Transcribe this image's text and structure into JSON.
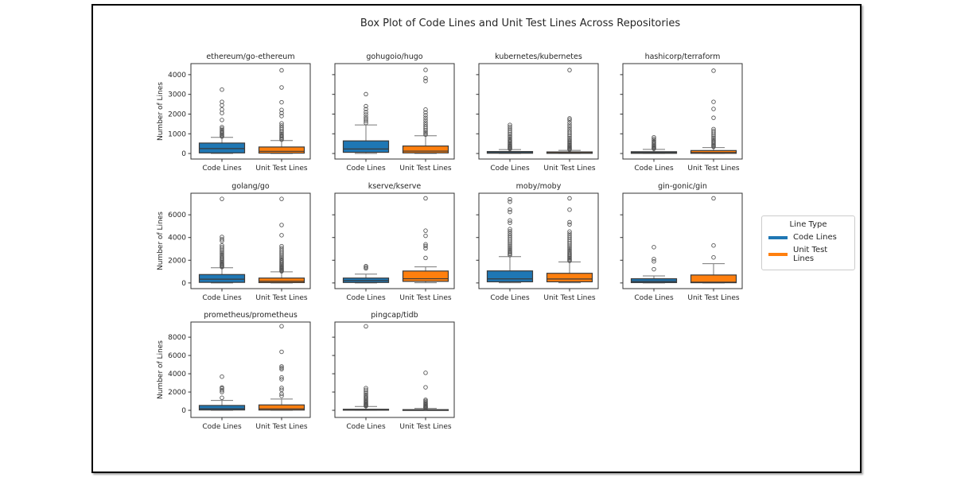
{
  "figure": {
    "title": "Box Plot of Code Lines and Unit Test Lines Across Repositories"
  },
  "legend": {
    "title": "Line Type",
    "entries": [
      {
        "label": "Code Lines",
        "color": "#1f77b4"
      },
      {
        "label": "Unit Test Lines",
        "color": "#ff7f0e"
      }
    ]
  },
  "chart_data": {
    "type": "boxplot-grid",
    "title": "Box Plot of Code Lines and Unit Test Lines Across Repositories",
    "ylabel": "Number of Lines",
    "xlabel": "",
    "grid": false,
    "legend_position": "right-outside",
    "categories": [
      "Code Lines",
      "Unit Test Lines"
    ],
    "series_colors": {
      "Code Lines": "#1f77b4",
      "Unit Test Lines": "#ff7f0e"
    },
    "box_edge_color": "#3a3a3a",
    "whisker_color": "#777777",
    "outlier_color": "#555555",
    "rows": [
      {
        "ylim": [
          -280,
          4560
        ],
        "yticks": [
          0,
          1000,
          2000,
          3000,
          4000
        ]
      },
      {
        "ylim": [
          -500,
          7900
        ],
        "yticks": [
          0,
          2000,
          4000,
          6000
        ]
      },
      {
        "ylim": [
          -780,
          9660
        ],
        "yticks": [
          0,
          2000,
          4000,
          6000,
          8000
        ]
      }
    ],
    "subplots": [
      {
        "title": "ethereum/go-ethereum",
        "row": 0,
        "col": 0,
        "boxes": [
          {
            "label": "Code Lines",
            "whislo": 0,
            "q1": 30,
            "med": 250,
            "q3": 530,
            "whishi": 820,
            "outliers": [
              860,
              900,
              950,
              1000,
              1060,
              1120,
              1190,
              1260,
              1340,
              1700,
              2050,
              2230,
              2450,
              2620,
              3240
            ]
          },
          {
            "label": "Unit Test Lines",
            "whislo": 0,
            "q1": 20,
            "med": 110,
            "q3": 330,
            "whishi": 660,
            "outliers": [
              700,
              750,
              800,
              860,
              920,
              990,
              1060,
              1140,
              1230,
              1320,
              1420,
              1530,
              1900,
              2050,
              2210,
              2600,
              3350,
              4220
            ]
          }
        ]
      },
      {
        "title": "gohugoio/hugo",
        "row": 0,
        "col": 1,
        "boxes": [
          {
            "label": "Code Lines",
            "whislo": 0,
            "q1": 60,
            "med": 230,
            "q3": 640,
            "whishi": 1450,
            "outliers": [
              1550,
              1650,
              1750,
              1850,
              1980,
              2100,
              2250,
              2400,
              3010
            ]
          },
          {
            "label": "Unit Test Lines",
            "whislo": 0,
            "q1": 30,
            "med": 120,
            "q3": 380,
            "whishi": 900,
            "outliers": [
              960,
              1030,
              1100,
              1180,
              1270,
              1360,
              1460,
              1570,
              1690,
              1810,
              1940,
              2080,
              2230,
              3680,
              3820,
              4240
            ]
          }
        ]
      },
      {
        "title": "kubernetes/kubernetes",
        "row": 0,
        "col": 2,
        "boxes": [
          {
            "label": "Code Lines",
            "whislo": 0,
            "q1": 15,
            "med": 45,
            "q3": 100,
            "whishi": 200,
            "outliers": [
              230,
              260,
              290,
              330,
              370,
              410,
              460,
              510,
              560,
              620,
              680,
              750,
              830,
              900,
              980,
              1060,
              1150,
              1250,
              1350,
              1450
            ]
          },
          {
            "label": "Unit Test Lines",
            "whislo": 0,
            "q1": 10,
            "med": 35,
            "q3": 80,
            "whishi": 160,
            "outliers": [
              200,
              230,
              260,
              300,
              340,
              380,
              430,
              480,
              530,
              590,
              650,
              720,
              790,
              870,
              950,
              1040,
              1130,
              1230,
              1340,
              1450,
              1570,
              1700,
              1780,
              4230
            ]
          }
        ]
      },
      {
        "title": "hashicorp/terraform",
        "row": 0,
        "col": 3,
        "boxes": [
          {
            "label": "Code Lines",
            "whislo": 0,
            "q1": 10,
            "med": 40,
            "q3": 90,
            "whishi": 210,
            "outliers": [
              240,
              270,
              300,
              340,
              380,
              430,
              480,
              540,
              600,
              670,
              740,
              820
            ]
          },
          {
            "label": "Unit Test Lines",
            "whislo": 0,
            "q1": 10,
            "med": 50,
            "q3": 150,
            "whishi": 300,
            "outliers": [
              340,
              380,
              430,
              480,
              540,
              600,
              660,
              730,
              800,
              880,
              960,
              1050,
              1140,
              1240,
              1810,
              2260,
              2620,
              4200
            ]
          }
        ]
      },
      {
        "title": "golang/go",
        "row": 1,
        "col": 0,
        "boxes": [
          {
            "label": "Code Lines",
            "whislo": 0,
            "q1": 50,
            "med": 330,
            "q3": 740,
            "whishi": 1340,
            "outliers": [
              1400,
              1460,
              1530,
              1600,
              1680,
              1760,
              1850,
              1940,
              2040,
              2140,
              2250,
              2360,
              2480,
              2600,
              2730,
              2870,
              3010,
              3160,
              3310,
              3700,
              3850,
              4050,
              7400
            ]
          },
          {
            "label": "Unit Test Lines",
            "whislo": 0,
            "q1": 30,
            "med": 150,
            "q3": 430,
            "whishi": 980,
            "outliers": [
              1030,
              1090,
              1150,
              1220,
              1290,
              1370,
              1450,
              1540,
              1630,
              1730,
              1830,
              1940,
              2050,
              2170,
              2300,
              2440,
              2580,
              2730,
              2890,
              3060,
              3240,
              4200,
              5100,
              7400
            ]
          }
        ]
      },
      {
        "title": "kserve/kserve",
        "row": 1,
        "col": 1,
        "boxes": [
          {
            "label": "Code Lines",
            "whislo": 0,
            "q1": 40,
            "med": 210,
            "q3": 430,
            "whishi": 780,
            "outliers": [
              1280,
              1380,
              1480
            ]
          },
          {
            "label": "Unit Test Lines",
            "whislo": 20,
            "q1": 140,
            "med": 370,
            "q3": 1050,
            "whishi": 1420,
            "outliers": [
              2200,
              3050,
              3250,
              3400,
              4150,
              4600,
              7450
            ]
          }
        ]
      },
      {
        "title": "moby/moby",
        "row": 1,
        "col": 2,
        "boxes": [
          {
            "label": "Code Lines",
            "whislo": 20,
            "q1": 100,
            "med": 360,
            "q3": 1060,
            "whishi": 2320,
            "outliers": [
              2450,
              2550,
              2660,
              2770,
              2890,
              3010,
              3140,
              3270,
              3410,
              3550,
              3700,
              3860,
              4020,
              4190,
              4370,
              4550,
              4740,
              5300,
              5500,
              6250,
              6450,
              7150,
              7370
            ]
          },
          {
            "label": "Unit Test Lines",
            "whislo": 20,
            "q1": 100,
            "med": 350,
            "q3": 850,
            "whishi": 1850,
            "outliers": [
              1950,
              2030,
              2110,
              2200,
              2290,
              2390,
              2490,
              2600,
              2710,
              2830,
              2950,
              3080,
              3210,
              3350,
              3500,
              3650,
              3810,
              3980,
              4150,
              4330,
              4520,
              5150,
              5350,
              6450,
              7450
            ]
          }
        ]
      },
      {
        "title": "gin-gonic/gin",
        "row": 1,
        "col": 3,
        "boxes": [
          {
            "label": "Code Lines",
            "whislo": 0,
            "q1": 30,
            "med": 140,
            "q3": 370,
            "whishi": 620,
            "outliers": [
              1210,
              1900,
              2100,
              3150
            ]
          },
          {
            "label": "Unit Test Lines",
            "whislo": 0,
            "q1": 20,
            "med": 70,
            "q3": 700,
            "whishi": 1700,
            "outliers": [
              2250,
              3300,
              7450
            ]
          }
        ]
      },
      {
        "title": "prometheus/prometheus",
        "row": 2,
        "col": 0,
        "boxes": [
          {
            "label": "Code Lines",
            "whislo": 0,
            "q1": 40,
            "med": 180,
            "q3": 530,
            "whishi": 1080,
            "outliers": [
              1370,
              2000,
              2200,
              2380,
              2500,
              3680
            ]
          },
          {
            "label": "Unit Test Lines",
            "whislo": 0,
            "q1": 30,
            "med": 160,
            "q3": 590,
            "whishi": 1230,
            "outliers": [
              1570,
              1800,
              2240,
              2450,
              3400,
              3600,
              4500,
              4650,
              4800,
              6400,
              9200
            ]
          }
        ]
      },
      {
        "title": "pingcap/tidb",
        "row": 2,
        "col": 1,
        "boxes": [
          {
            "label": "Code Lines",
            "whislo": 0,
            "q1": 15,
            "med": 55,
            "q3": 115,
            "whishi": 420,
            "outliers": [
              450,
              500,
              560,
              630,
              700,
              780,
              870,
              960,
              1060,
              1170,
              1290,
              1420,
              1560,
              1710,
              1870,
              2040,
              2230,
              2430,
              9190
            ]
          },
          {
            "label": "Unit Test Lines",
            "whislo": 0,
            "q1": 8,
            "med": 30,
            "q3": 75,
            "whishi": 210,
            "outliers": [
              250,
              290,
              340,
              390,
              450,
              520,
              600,
              690,
              790,
              900,
              1020,
              1150,
              2520,
              4100
            ]
          }
        ]
      }
    ]
  }
}
